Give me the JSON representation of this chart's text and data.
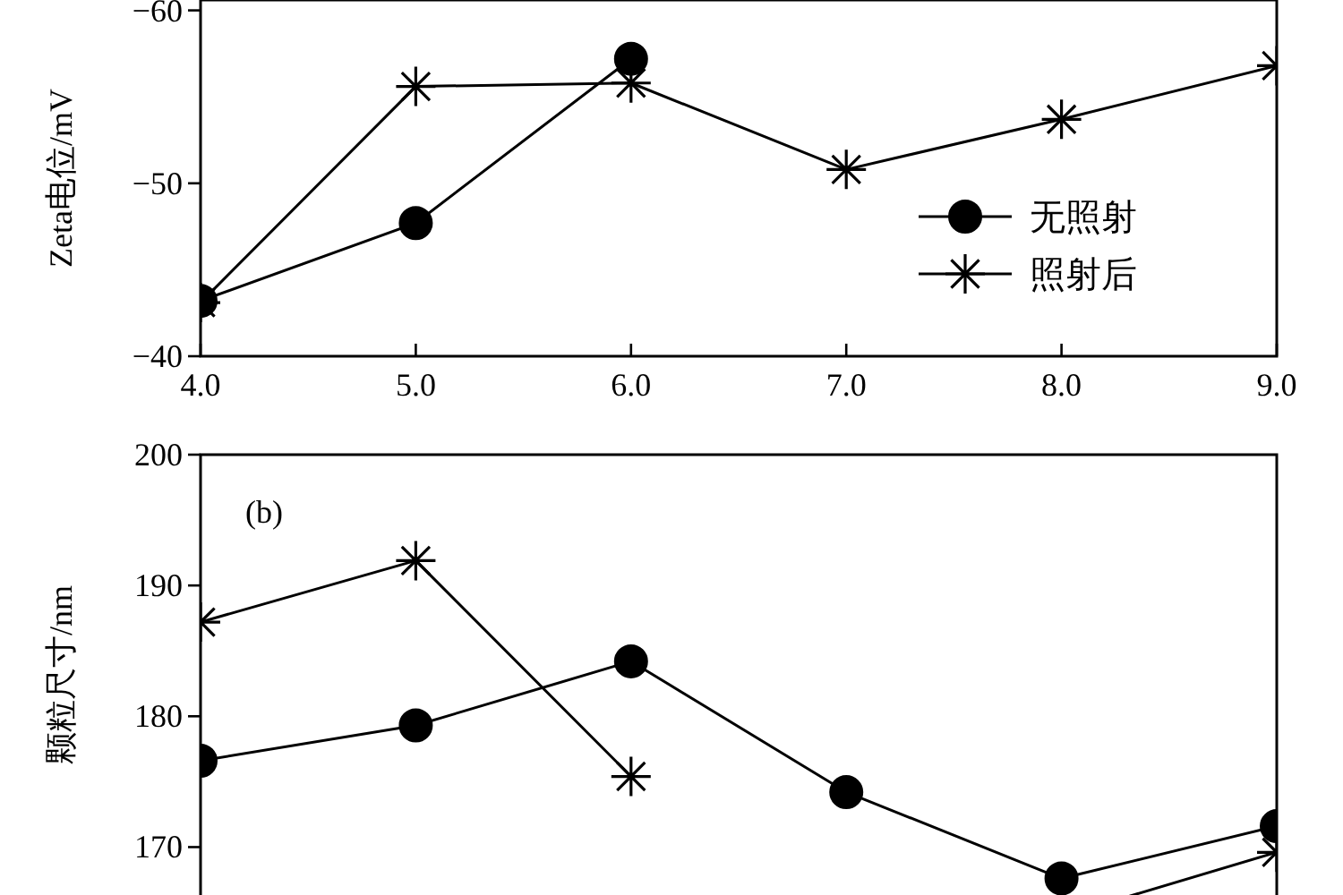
{
  "chart_data": [
    {
      "type": "line",
      "ylabel": "Zeta电位/mV",
      "x": [
        4.0,
        5.0,
        6.0,
        7.0,
        8.0,
        9.0
      ],
      "xlim": [
        4.0,
        9.0
      ],
      "ylim": [
        -40,
        -60.6
      ],
      "xticks": [
        {
          "value": 4,
          "label": "4.0"
        },
        {
          "value": 5,
          "label": "5.0"
        },
        {
          "value": 6,
          "label": "6.0"
        },
        {
          "value": 7,
          "label": "7.0"
        },
        {
          "value": 8,
          "label": "8.0"
        },
        {
          "value": 9,
          "label": "9.0"
        }
      ],
      "yticks": [
        {
          "value": -40,
          "label": "−40"
        },
        {
          "value": -50,
          "label": "−50"
        },
        {
          "value": -60,
          "label": "−60"
        }
      ],
      "legend": "bottom right",
      "grid": false,
      "series": [
        {
          "name": "无照射",
          "color": "#000000",
          "marker": "circle",
          "values": [
            -43.2,
            -47.7,
            -57.2,
            null,
            null,
            null
          ]
        },
        {
          "name": "照射后",
          "color": "#000000",
          "marker": "cross",
          "values": [
            -43.1,
            -55.6,
            -55.8,
            -50.8,
            -53.7,
            -56.8
          ]
        }
      ]
    },
    {
      "type": "line",
      "ylabel": "颗粒尺寸/nm",
      "annotations": [
        "(b)"
      ],
      "x": [
        4.0,
        5.0,
        6.0,
        7.0,
        8.0,
        9.0
      ],
      "xlim": [
        4.0,
        9.0
      ],
      "ylim": [
        163.6,
        200
      ],
      "yticks": [
        170,
        180,
        190,
        200
      ],
      "tick_labels": "y",
      "grid": false,
      "series": [
        {
          "color": "#000000",
          "marker": "circle",
          "values": [
            176.6,
            179.3,
            184.2,
            174.2,
            167.6,
            171.6
          ]
        },
        {
          "color": "#000000",
          "marker": "cross",
          "values": [
            187.2,
            191.9,
            175.4,
            null,
            164.7,
            169.6
          ]
        }
      ]
    }
  ]
}
